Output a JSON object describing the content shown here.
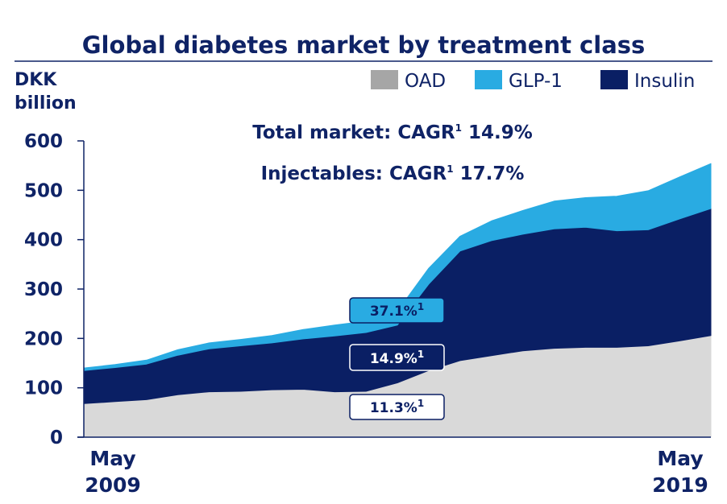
{
  "chart_data": {
    "type": "area",
    "stacked": true,
    "title": "Global diabetes market by treatment class",
    "ylabel_line1": "DKK",
    "ylabel_line2": "billion",
    "ylim": [
      0,
      600
    ],
    "yticks": [
      "0",
      "100",
      "200",
      "300",
      "400",
      "500",
      "600"
    ],
    "xlim": [
      2009.33,
      2019.33
    ],
    "xtick_labels": [
      {
        "line1": "May",
        "line2": "2009"
      },
      {
        "line1": "May",
        "line2": "2019"
      }
    ],
    "x": [
      2009.33,
      2009.83,
      2010.33,
      2010.83,
      2011.33,
      2011.83,
      2012.33,
      2012.83,
      2013.33,
      2013.83,
      2014.33,
      2014.83,
      2015.33,
      2015.83,
      2016.33,
      2016.83,
      2017.33,
      2017.83,
      2018.33,
      2018.83,
      2019.33
    ],
    "series": [
      {
        "name": "OAD",
        "color": "#d9d9d9",
        "values": [
          68,
          72,
          76,
          86,
          92,
          93,
          96,
          97,
          92,
          93,
          110,
          135,
          155,
          165,
          175,
          180,
          182,
          182,
          185,
          195,
          206
        ]
      },
      {
        "name": "Insulin",
        "color": "#0a1f64",
        "values": [
          67,
          69,
          72,
          80,
          87,
          92,
          95,
          102,
          113,
          119,
          117,
          175,
          222,
          233,
          236,
          242,
          243,
          236,
          235,
          247,
          257
        ]
      },
      {
        "name": "GLP-1",
        "color": "#29abe2",
        "values": [
          5,
          6,
          8,
          11,
          12,
          13,
          15,
          19,
          22,
          23,
          28,
          32,
          30,
          40,
          48,
          56,
          60,
          70,
          79,
          85,
          91
        ]
      }
    ],
    "legend": {
      "placement": "top-right",
      "entries": [
        {
          "label": "OAD",
          "color": "#a6a6a6"
        },
        {
          "label": "GLP-1",
          "color": "#29abe2"
        },
        {
          "label": "Insulin",
          "color": "#0a1f64"
        }
      ]
    },
    "annotations": {
      "total": "Total market: CAGR",
      "total_value": " 14.9%",
      "injectables": "Injectables: CAGR",
      "injectables_value": " 17.7%",
      "footnote_mark": "1"
    },
    "badges": [
      {
        "series": "GLP-1",
        "label": "37.1%",
        "sup": "1",
        "fill": "#29abe2",
        "stroke": "#0a1f64",
        "text_color": "#0a1f64"
      },
      {
        "series": "Insulin",
        "label": "14.9%",
        "sup": "1",
        "fill": "#0a1f64",
        "stroke": "#ffffff",
        "text_color": "#ffffff"
      },
      {
        "series": "OAD",
        "label": "11.3%",
        "sup": "1",
        "fill": "#ffffff",
        "stroke": "#0a1f64",
        "text_color": "#0a1f64"
      }
    ],
    "grid": false
  }
}
